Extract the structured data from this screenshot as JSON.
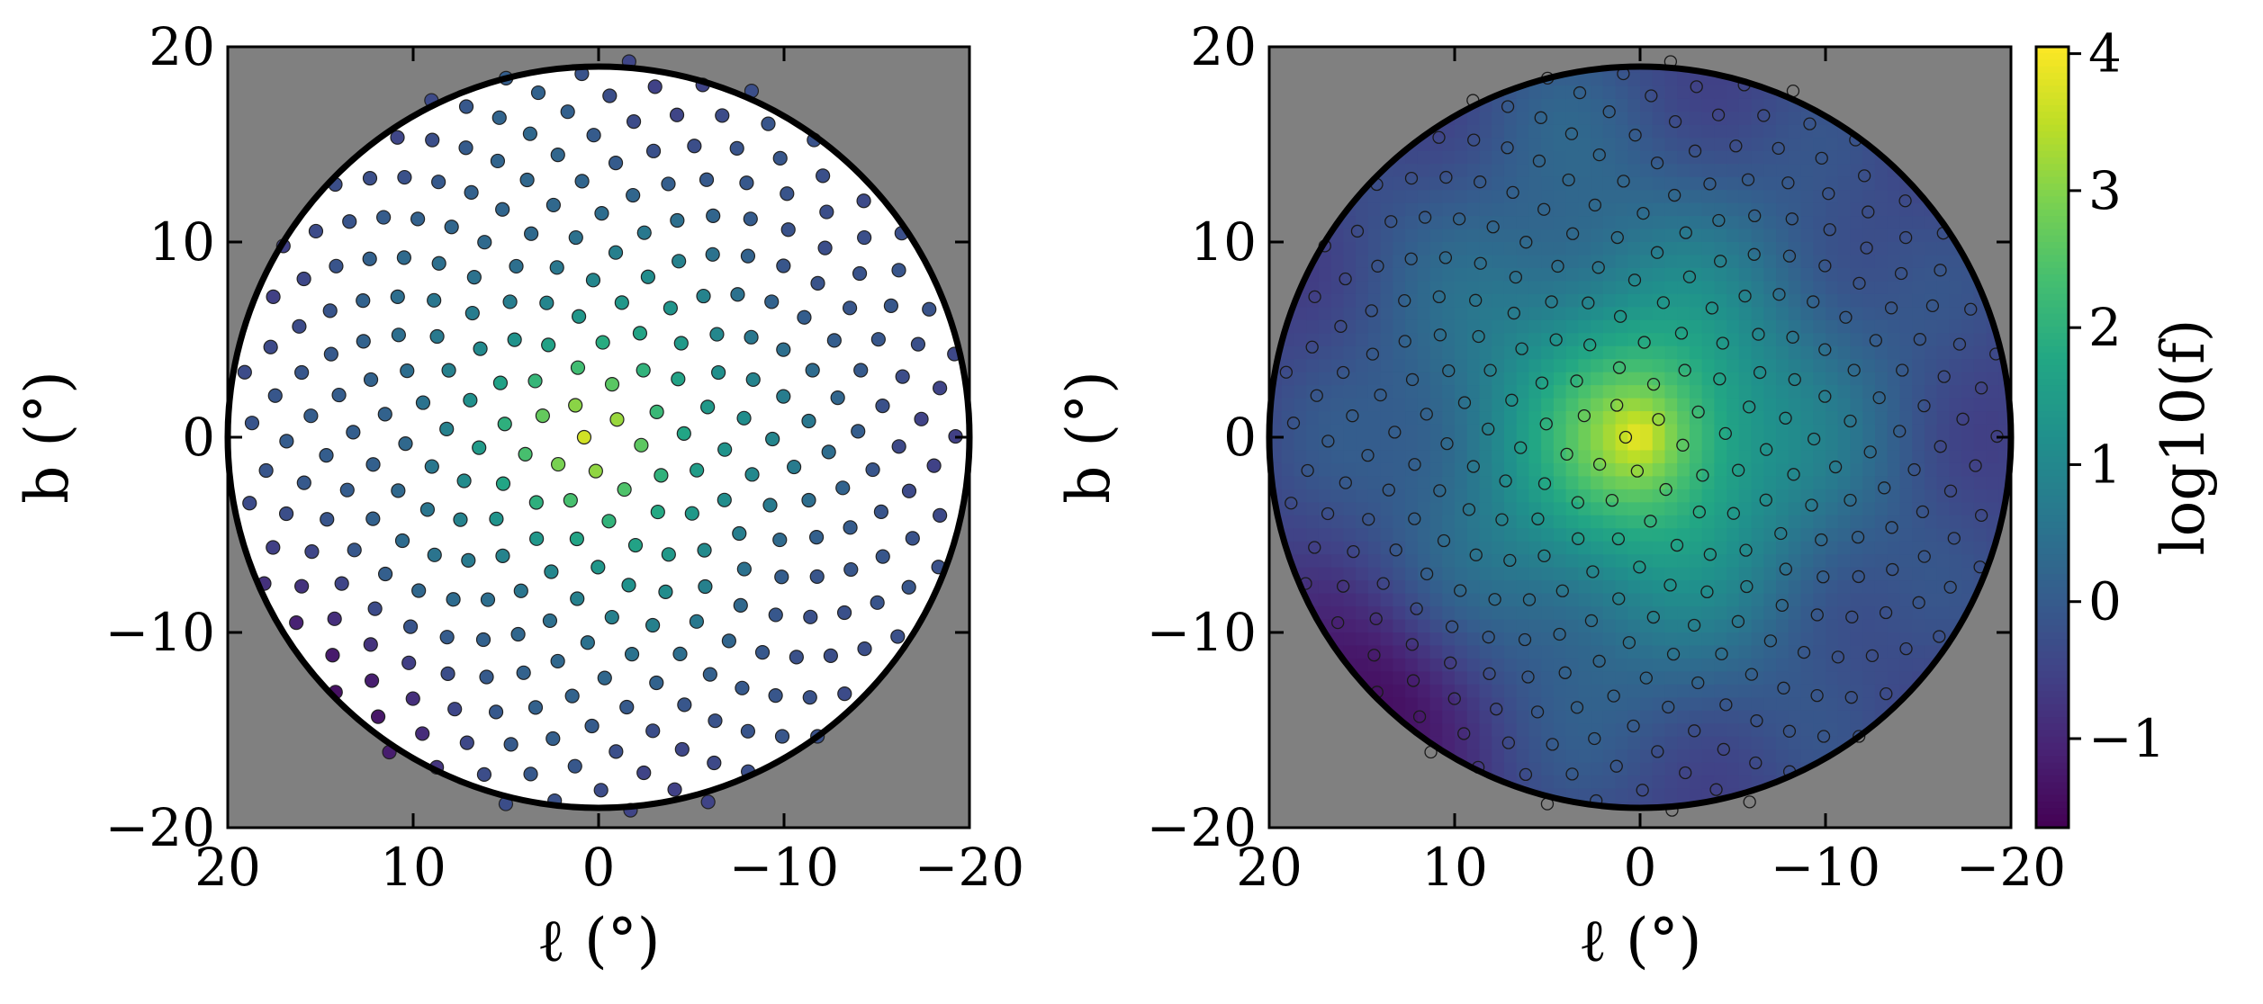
{
  "colormap": "viridis",
  "colors": {
    "background_outside": "#808080",
    "circle_edge": "#000000",
    "panel_fill": "#ffffff"
  },
  "chart_data": [
    {
      "type": "scatter",
      "xlabel": "ℓ (°)",
      "ylabel": "b (°)",
      "xlim": [
        20,
        -20
      ],
      "ylim": [
        -20,
        20
      ],
      "x_ticks": [
        20,
        10,
        0,
        -10,
        -20
      ],
      "y_ticks": [
        20,
        10,
        0,
        -10,
        -20
      ],
      "x_tick_labels": [
        "20",
        "10",
        "0",
        "−10",
        "−20"
      ],
      "y_tick_labels": [
        "20",
        "10",
        "0",
        "−10",
        "−20"
      ],
      "region": {
        "shape": "circle",
        "center": [
          0,
          0
        ],
        "radius_deg": 20
      },
      "points": {
        "pattern": "sunflower",
        "count": 320,
        "color_by": "log10(f)"
      }
    },
    {
      "type": "heatmap",
      "xlabel": "ℓ (°)",
      "ylabel": "b (°)",
      "xlim": [
        20,
        -20
      ],
      "ylim": [
        -20,
        20
      ],
      "x_ticks": [
        20,
        10,
        0,
        -10,
        -20
      ],
      "y_ticks": [
        20,
        10,
        0,
        -10,
        -20
      ],
      "x_tick_labels": [
        "20",
        "10",
        "0",
        "−10",
        "−20"
      ],
      "y_tick_labels": [
        "20",
        "10",
        "0",
        "−10",
        "−20"
      ],
      "region": {
        "shape": "circle",
        "center": [
          0,
          0
        ],
        "radius_deg": 20
      },
      "peak": {
        "l": 0,
        "b": 0,
        "value": 4.0
      },
      "minima": [
        {
          "l": 14,
          "b": -13,
          "value": -1.6
        },
        {
          "l": -15,
          "b": -2,
          "value": -0.6
        },
        {
          "l": 15,
          "b": 12,
          "value": -0.5
        },
        {
          "l": 6,
          "b": 18,
          "value": -0.3
        }
      ],
      "overlay_points": {
        "pattern": "sunflower",
        "count": 320,
        "style": "open-circle"
      },
      "colorbar": {
        "label": "log10(f)",
        "vmin": -1.65,
        "vmax": 4.05,
        "ticks": [
          -1,
          0,
          1,
          2,
          3,
          4
        ],
        "tick_labels": [
          "−1",
          "0",
          "1",
          "2",
          "3",
          "4"
        ]
      }
    }
  ]
}
